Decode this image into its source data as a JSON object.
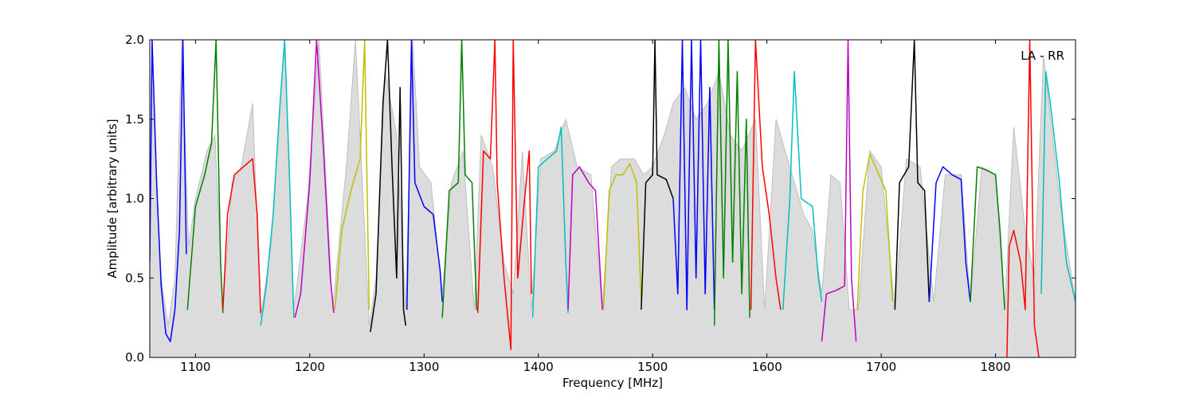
{
  "chart_data": {
    "type": "line",
    "title": "",
    "xlabel": "Frequency [MHz]",
    "ylabel": "Amplitude [arbitrary units]",
    "xlim": [
      1060,
      1870
    ],
    "ylim": [
      0.0,
      2.0
    ],
    "xticks": [
      1100,
      1200,
      1300,
      1400,
      1500,
      1600,
      1700,
      1800
    ],
    "xtick_labels": [
      "1100",
      "1200",
      "1300",
      "1400",
      "1500",
      "1600",
      "1700",
      "1800"
    ],
    "yticks": [
      0.0,
      0.5,
      1.0,
      1.5,
      2.0
    ],
    "ytick_labels": [
      "0.0",
      "0.5",
      "1.0",
      "1.5",
      "2.0"
    ],
    "grid": false,
    "annotation": "LA - RR",
    "colors": {
      "grey": "#bfbfbf",
      "blue": "#0000ff",
      "green": "#008000",
      "red": "#ff0000",
      "cyan": "#00bfbf",
      "magenta": "#bf00bf",
      "olive": "#bfbf00",
      "black": "#000000"
    },
    "background": {
      "name": "grey envelope",
      "color": "#bfbfbf",
      "points": [
        [
          1060,
          0.6
        ],
        [
          1062,
          2.0
        ],
        [
          1066,
          1.1
        ],
        [
          1070,
          0.5
        ],
        [
          1076,
          0.2
        ],
        [
          1082,
          0.5
        ],
        [
          1088,
          2.0
        ],
        [
          1094,
          0.7
        ],
        [
          1100,
          1.0
        ],
        [
          1110,
          1.3
        ],
        [
          1117,
          1.4
        ],
        [
          1124,
          0.3
        ],
        [
          1132,
          1.1
        ],
        [
          1140,
          1.2
        ],
        [
          1150,
          1.6
        ],
        [
          1157,
          0.25
        ],
        [
          1166,
          0.7
        ],
        [
          1178,
          2.0
        ],
        [
          1186,
          0.3
        ],
        [
          1198,
          1.0
        ],
        [
          1208,
          2.0
        ],
        [
          1220,
          0.3
        ],
        [
          1232,
          1.2
        ],
        [
          1240,
          2.0
        ],
        [
          1252,
          0.2
        ],
        [
          1258,
          0.5
        ],
        [
          1266,
          1.8
        ],
        [
          1276,
          1.4
        ],
        [
          1284,
          0.3
        ],
        [
          1290,
          2.0
        ],
        [
          1296,
          1.2
        ],
        [
          1306,
          1.1
        ],
        [
          1316,
          0.4
        ],
        [
          1324,
          1.1
        ],
        [
          1334,
          1.3
        ],
        [
          1344,
          0.3
        ],
        [
          1350,
          1.4
        ],
        [
          1360,
          1.2
        ],
        [
          1370,
          0.6
        ],
        [
          1378,
          0.4
        ],
        [
          1386,
          1.3
        ],
        [
          1394,
          0.3
        ],
        [
          1402,
          1.25
        ],
        [
          1414,
          1.3
        ],
        [
          1424,
          1.5
        ],
        [
          1434,
          1.2
        ],
        [
          1446,
          1.15
        ],
        [
          1456,
          0.3
        ],
        [
          1464,
          1.2
        ],
        [
          1472,
          1.25
        ],
        [
          1484,
          1.25
        ],
        [
          1492,
          1.15
        ],
        [
          1500,
          1.2
        ],
        [
          1510,
          1.4
        ],
        [
          1518,
          1.6
        ],
        [
          1528,
          1.7
        ],
        [
          1538,
          1.5
        ],
        [
          1548,
          1.6
        ],
        [
          1558,
          1.8
        ],
        [
          1568,
          1.4
        ],
        [
          1578,
          1.3
        ],
        [
          1590,
          1.5
        ],
        [
          1598,
          0.3
        ],
        [
          1608,
          1.5
        ],
        [
          1620,
          1.2
        ],
        [
          1632,
          0.9
        ],
        [
          1640,
          0.8
        ],
        [
          1648,
          0.4
        ],
        [
          1656,
          1.15
        ],
        [
          1664,
          1.1
        ],
        [
          1672,
          0.3
        ],
        [
          1680,
          0.3
        ],
        [
          1690,
          1.3
        ],
        [
          1700,
          1.2
        ],
        [
          1712,
          0.3
        ],
        [
          1722,
          1.25
        ],
        [
          1734,
          1.2
        ],
        [
          1746,
          0.35
        ],
        [
          1756,
          1.15
        ],
        [
          1770,
          1.15
        ],
        [
          1778,
          0.35
        ],
        [
          1788,
          1.2
        ],
        [
          1800,
          1.15
        ],
        [
          1808,
          0.3
        ],
        [
          1816,
          1.45
        ],
        [
          1826,
          0.8
        ],
        [
          1834,
          0.5
        ],
        [
          1842,
          1.9
        ],
        [
          1856,
          1.0
        ],
        [
          1870,
          0.35
        ]
      ]
    },
    "series": [
      {
        "color": "#0000ff",
        "points": [
          [
            1060,
            0.6
          ],
          [
            1062,
            2.0
          ],
          [
            1066,
            1.1
          ],
          [
            1070,
            0.45
          ],
          [
            1074,
            0.15
          ],
          [
            1078,
            0.1
          ],
          [
            1082,
            0.3
          ],
          [
            1086,
            0.8
          ],
          [
            1089,
            2.0
          ],
          [
            1092,
            0.65
          ]
        ]
      },
      {
        "color": "#008000",
        "points": [
          [
            1093,
            0.3
          ],
          [
            1100,
            0.95
          ],
          [
            1108,
            1.15
          ],
          [
            1114,
            1.35
          ],
          [
            1118,
            2.0
          ],
          [
            1122,
            0.6
          ],
          [
            1124,
            0.28
          ]
        ]
      },
      {
        "color": "#ff0000",
        "points": [
          [
            1124,
            0.3
          ],
          [
            1128,
            0.9
          ],
          [
            1134,
            1.15
          ],
          [
            1142,
            1.2
          ],
          [
            1150,
            1.25
          ],
          [
            1154,
            0.9
          ],
          [
            1157,
            0.28
          ]
        ]
      },
      {
        "color": "#00bfbf",
        "points": [
          [
            1157,
            0.2
          ],
          [
            1162,
            0.45
          ],
          [
            1168,
            0.9
          ],
          [
            1174,
            1.6
          ],
          [
            1178,
            2.0
          ],
          [
            1182,
            1.2
          ],
          [
            1186,
            0.25
          ]
        ]
      },
      {
        "color": "#bf00bf",
        "points": [
          [
            1187,
            0.25
          ],
          [
            1192,
            0.4
          ],
          [
            1200,
            1.1
          ],
          [
            1206,
            2.0
          ],
          [
            1212,
            1.3
          ],
          [
            1218,
            0.5
          ],
          [
            1221,
            0.28
          ]
        ]
      },
      {
        "color": "#bfbf00",
        "points": [
          [
            1222,
            0.3
          ],
          [
            1228,
            0.8
          ],
          [
            1236,
            1.05
          ],
          [
            1244,
            1.25
          ],
          [
            1248,
            2.0
          ],
          [
            1252,
            0.3
          ]
        ]
      },
      {
        "color": "#000000",
        "points": [
          [
            1253,
            0.16
          ],
          [
            1258,
            0.4
          ],
          [
            1264,
            1.6
          ],
          [
            1268,
            2.0
          ],
          [
            1272,
            1.2
          ],
          [
            1276,
            0.5
          ],
          [
            1279,
            1.7
          ],
          [
            1282,
            0.3
          ],
          [
            1284,
            0.2
          ]
        ]
      },
      {
        "color": "#0000ff",
        "points": [
          [
            1285,
            0.3
          ],
          [
            1289,
            2.0
          ],
          [
            1292,
            1.1
          ],
          [
            1300,
            0.95
          ],
          [
            1308,
            0.9
          ],
          [
            1314,
            0.55
          ],
          [
            1316,
            0.35
          ]
        ]
      },
      {
        "color": "#008000",
        "points": [
          [
            1316,
            0.25
          ],
          [
            1322,
            1.05
          ],
          [
            1330,
            1.1
          ],
          [
            1333,
            2.0
          ],
          [
            1336,
            1.15
          ],
          [
            1342,
            1.1
          ],
          [
            1346,
            0.3
          ]
        ]
      },
      {
        "color": "#ff0000",
        "points": [
          [
            1347,
            0.28
          ],
          [
            1352,
            1.3
          ],
          [
            1358,
            1.25
          ],
          [
            1362,
            2.0
          ],
          [
            1364,
            1.1
          ],
          [
            1370,
            0.5
          ],
          [
            1376,
            0.05
          ],
          [
            1378,
            2.0
          ],
          [
            1382,
            0.5
          ],
          [
            1388,
            1.0
          ],
          [
            1392,
            1.3
          ],
          [
            1394,
            0.4
          ]
        ]
      },
      {
        "color": "#00bfbf",
        "points": [
          [
            1395,
            0.25
          ],
          [
            1400,
            1.2
          ],
          [
            1408,
            1.25
          ],
          [
            1416,
            1.3
          ],
          [
            1420,
            1.45
          ],
          [
            1424,
            0.6
          ],
          [
            1426,
            0.28
          ]
        ]
      },
      {
        "color": "#bf00bf",
        "points": [
          [
            1426,
            0.3
          ],
          [
            1430,
            1.15
          ],
          [
            1436,
            1.2
          ],
          [
            1444,
            1.1
          ],
          [
            1450,
            1.05
          ],
          [
            1456,
            0.3
          ]
        ]
      },
      {
        "color": "#bfbf00",
        "points": [
          [
            1457,
            0.3
          ],
          [
            1462,
            1.05
          ],
          [
            1468,
            1.15
          ],
          [
            1474,
            1.15
          ],
          [
            1480,
            1.22
          ],
          [
            1486,
            1.1
          ],
          [
            1490,
            0.35
          ]
        ]
      },
      {
        "color": "#000000",
        "points": [
          [
            1490,
            0.3
          ],
          [
            1494,
            1.1
          ],
          [
            1500,
            1.15
          ],
          [
            1502,
            2.0
          ],
          [
            1504,
            1.15
          ],
          [
            1512,
            1.12
          ],
          [
            1518,
            1.0
          ]
        ]
      },
      {
        "color": "#0000ff",
        "points": [
          [
            1518,
            1.0
          ],
          [
            1522,
            0.4
          ],
          [
            1526,
            2.0
          ],
          [
            1530,
            0.3
          ],
          [
            1534,
            2.0
          ],
          [
            1538,
            0.5
          ],
          [
            1542,
            2.0
          ],
          [
            1546,
            0.4
          ],
          [
            1550,
            1.7
          ],
          [
            1554,
            0.3
          ]
        ]
      },
      {
        "color": "#008000",
        "points": [
          [
            1554,
            0.2
          ],
          [
            1558,
            2.0
          ],
          [
            1562,
            0.5
          ],
          [
            1566,
            2.0
          ],
          [
            1570,
            0.6
          ],
          [
            1574,
            1.8
          ],
          [
            1578,
            0.4
          ],
          [
            1582,
            1.5
          ],
          [
            1585,
            0.25
          ]
        ]
      },
      {
        "color": "#ff0000",
        "points": [
          [
            1586,
            0.3
          ],
          [
            1590,
            2.0
          ],
          [
            1596,
            1.2
          ],
          [
            1602,
            0.9
          ],
          [
            1608,
            0.5
          ],
          [
            1612,
            0.3
          ]
        ]
      },
      {
        "color": "#00bfbf",
        "points": [
          [
            1614,
            0.3
          ],
          [
            1620,
            1.0
          ],
          [
            1624,
            1.8
          ],
          [
            1630,
            1.0
          ],
          [
            1640,
            0.95
          ],
          [
            1645,
            0.5
          ],
          [
            1648,
            0.35
          ]
        ]
      },
      {
        "color": "#bf00bf",
        "points": [
          [
            1648,
            0.1
          ],
          [
            1652,
            0.4
          ],
          [
            1660,
            0.42
          ],
          [
            1668,
            0.45
          ],
          [
            1671,
            2.0
          ],
          [
            1674,
            0.5
          ],
          [
            1678,
            0.1
          ]
        ]
      },
      {
        "color": "#bfbf00",
        "points": [
          [
            1679,
            0.3
          ],
          [
            1684,
            1.05
          ],
          [
            1690,
            1.28
          ],
          [
            1698,
            1.15
          ],
          [
            1704,
            1.05
          ],
          [
            1710,
            0.35
          ]
        ]
      },
      {
        "color": "#000000",
        "points": [
          [
            1712,
            0.3
          ],
          [
            1716,
            1.1
          ],
          [
            1724,
            1.2
          ],
          [
            1729,
            2.0
          ],
          [
            1732,
            1.1
          ],
          [
            1738,
            1.05
          ],
          [
            1742,
            0.35
          ]
        ]
      },
      {
        "color": "#0000ff",
        "points": [
          [
            1742,
            0.35
          ],
          [
            1748,
            1.1
          ],
          [
            1754,
            1.2
          ],
          [
            1762,
            1.15
          ],
          [
            1770,
            1.12
          ],
          [
            1774,
            0.6
          ],
          [
            1778,
            0.35
          ]
        ]
      },
      {
        "color": "#008000",
        "points": [
          [
            1778,
            0.35
          ],
          [
            1784,
            1.2
          ],
          [
            1792,
            1.18
          ],
          [
            1800,
            1.15
          ],
          [
            1804,
            0.8
          ],
          [
            1808,
            0.3
          ]
        ]
      },
      {
        "color": "#ff0000",
        "points": [
          [
            1810,
            0.0
          ],
          [
            1812,
            0.7
          ],
          [
            1816,
            0.8
          ],
          [
            1822,
            0.6
          ],
          [
            1826,
            0.3
          ],
          [
            1830,
            2.0
          ],
          [
            1834,
            0.2
          ],
          [
            1838,
            0.0
          ]
        ]
      },
      {
        "color": "#00bfbf",
        "points": [
          [
            1840,
            0.4
          ],
          [
            1844,
            1.8
          ],
          [
            1848,
            1.6
          ],
          [
            1856,
            1.1
          ],
          [
            1862,
            0.6
          ],
          [
            1870,
            0.35
          ]
        ]
      }
    ]
  }
}
